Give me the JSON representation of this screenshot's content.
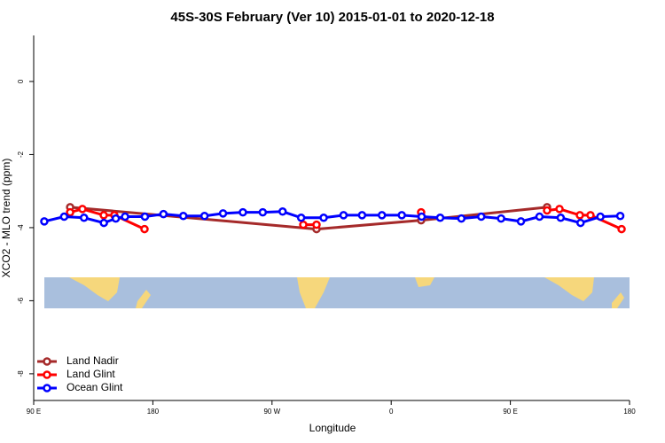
{
  "chart_data": {
    "type": "line",
    "title": "45S-30S February (Ver 10)   2015-01-01 to 2020-12-18",
    "x_label": "Longitude",
    "y_label": "XCO2 - MLO trend (ppm)",
    "xlim": [
      90,
      540
    ],
    "xticks": [
      {
        "value": 90,
        "label": "90 E"
      },
      {
        "value": 180,
        "label": "180"
      },
      {
        "value": 270,
        "label": "90 W"
      },
      {
        "value": 360,
        "label": "0"
      },
      {
        "value": 450,
        "label": "90 E"
      },
      {
        "value": 540,
        "label": "180"
      }
    ],
    "ylim": [
      -8.73,
      1.26
    ],
    "yticks": [
      -8,
      -6,
      -4,
      -2,
      0
    ],
    "legend": "bottom-left",
    "series": [
      {
        "name": "Land Nadir",
        "color": "#a52a2a",
        "x": [
          117.5,
          303.6,
          382.6,
          477.7
        ],
        "values": [
          -3.44,
          -4.04,
          -3.8,
          -3.44
        ]
      },
      {
        "name": "Land Glint",
        "color": "#ff0000",
        "x": [
          117.5,
          126.8,
          142.9,
          150.9,
          173.7,
          200,
          293.6,
          303.6,
          340,
          382.6,
          420,
          477.7,
          487.1,
          502.5,
          510.5,
          534
        ],
        "values": [
          -3.58,
          -3.49,
          -3.66,
          -3.66,
          -4.04,
          null,
          -3.92,
          -3.92,
          null,
          -3.58,
          null,
          -3.53,
          -3.49,
          -3.66,
          -3.66,
          -4.04
        ]
      },
      {
        "name": "Ocean Glint",
        "color": "#0000ff",
        "x": [
          98,
          113,
          128,
          143,
          152,
          159,
          174,
          188,
          203,
          219,
          233,
          248,
          263,
          278,
          292,
          309,
          324,
          338,
          353,
          368,
          383,
          397,
          413,
          428,
          443,
          458,
          472,
          488,
          503,
          518,
          533
        ],
        "values": [
          -3.83,
          -3.7,
          -3.73,
          -3.87,
          -3.75,
          -3.7,
          -3.7,
          -3.63,
          -3.68,
          -3.68,
          -3.61,
          -3.58,
          -3.58,
          -3.56,
          -3.73,
          -3.73,
          -3.66,
          -3.66,
          -3.66,
          -3.66,
          -3.7,
          -3.73,
          -3.75,
          -3.7,
          -3.75,
          -3.83,
          -3.7,
          -3.73,
          -3.87,
          -3.7,
          -3.68
        ]
      }
    ]
  }
}
